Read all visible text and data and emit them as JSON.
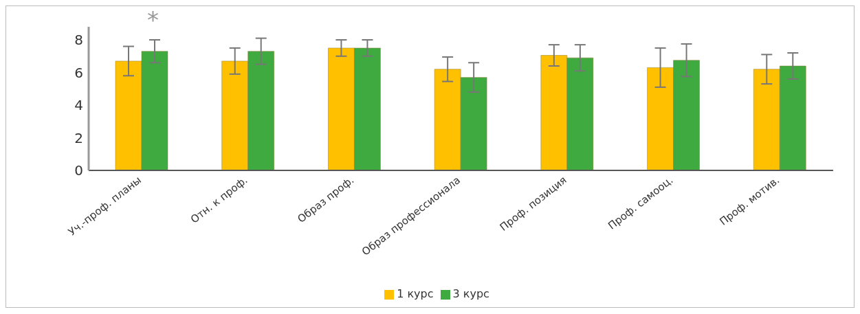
{
  "chart_data": {
    "type": "bar",
    "categories": [
      "Уч.-проф. планы",
      "Отн. к проф.",
      "Образ проф.",
      "Образ профессионала",
      "Проф. позиция",
      "Проф. самооц.",
      "Проф. мотив."
    ],
    "series": [
      {
        "name": "1 курс",
        "color": "#ffc000",
        "values": [
          6.7,
          6.7,
          7.5,
          6.2,
          7.05,
          6.3,
          6.2
        ],
        "errors": [
          0.9,
          0.8,
          0.5,
          0.75,
          0.65,
          1.2,
          0.9
        ]
      },
      {
        "name": "3 курс",
        "color": "#3faa3f",
        "values": [
          7.3,
          7.3,
          7.5,
          5.7,
          6.9,
          6.75,
          6.4
        ],
        "errors": [
          0.7,
          0.8,
          0.5,
          0.9,
          0.8,
          1.0,
          0.8
        ]
      }
    ],
    "ylim": [
      0,
      8.8
    ],
    "yticks": [
      0,
      2,
      4,
      6,
      8
    ],
    "grid": false,
    "legend": "bottom",
    "annotations": [
      "*"
    ]
  }
}
